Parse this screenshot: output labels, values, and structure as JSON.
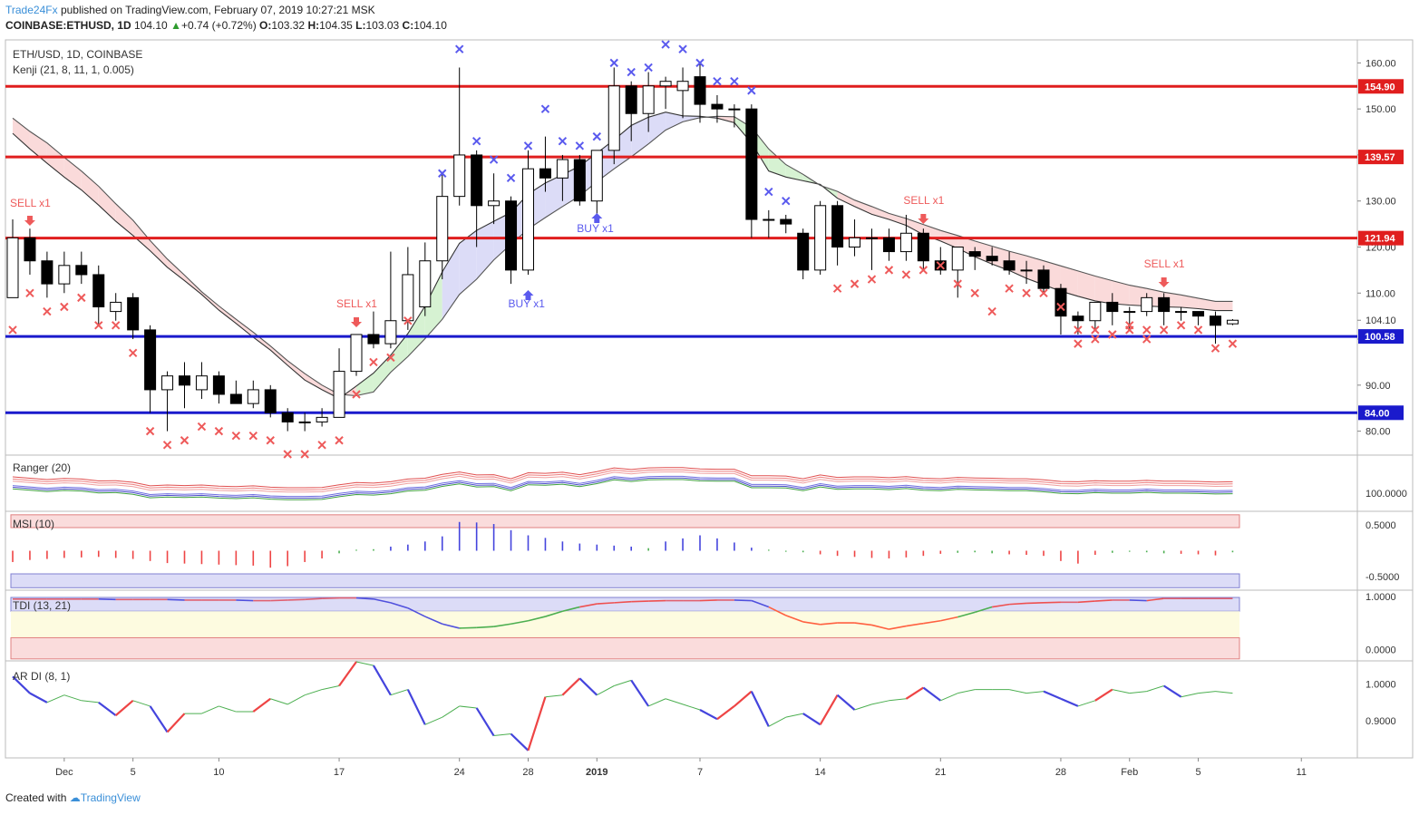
{
  "header": {
    "publisher": "Trade24Fx",
    "published_text": "published on TradingView.com, February 07, 2019 10:27:21 MSK",
    "symbol": "COINBASE:ETHUSD, 1D",
    "last": "104.10",
    "change": "+0.74 (+0.72%)",
    "open_label": "O:",
    "open": "103.32",
    "high_label": "H:",
    "high": "104.35",
    "low_label": "L:",
    "low": "103.03",
    "close_label": "C:",
    "close": "104.10"
  },
  "footer": {
    "created_with": "Created with",
    "brand": "TradingView"
  },
  "colors": {
    "resistance": "#e01e1e",
    "support": "#1a1acc",
    "bull_fill": "#ffffff",
    "bear_fill": "#000000",
    "buy_signal": "#5a5aee",
    "sell_signal": "#ee5a5a",
    "cloud_bear": "#fadada",
    "cloud_bull": "#dcdcf7",
    "cloud_green": "#d6f2d2",
    "ar_up": "#ee4444",
    "ar_down": "#4444dd",
    "ar_neutral": "#4caf50"
  },
  "chart_data": [
    {
      "type": "candlestick",
      "panel": "main",
      "legend": [
        "ETH/USD, 1D, COINBASE",
        "Kenji (21, 8, 11, 1, 0.005)"
      ],
      "ylim": [
        75,
        165
      ],
      "y_ticks": [
        80,
        90,
        100,
        110,
        120,
        130,
        140,
        150,
        160
      ],
      "x_tick_labels": [
        {
          "label": "Dec",
          "bar": 3
        },
        {
          "label": "5",
          "bar": 7
        },
        {
          "label": "10",
          "bar": 12
        },
        {
          "label": "17",
          "bar": 19
        },
        {
          "label": "24",
          "bar": 26
        },
        {
          "label": "28",
          "bar": 30
        },
        {
          "label": "2019",
          "bar": 34
        },
        {
          "label": "7",
          "bar": 40
        },
        {
          "label": "14",
          "bar": 47
        },
        {
          "label": "21",
          "bar": 54
        },
        {
          "label": "28",
          "bar": 61
        },
        {
          "label": "Feb",
          "bar": 65
        },
        {
          "label": "5",
          "bar": 69
        },
        {
          "label": "11",
          "bar": 75
        }
      ],
      "horizontal_levels": [
        {
          "value": 154.9,
          "label": "154.90",
          "kind": "resistance"
        },
        {
          "value": 139.57,
          "label": "139.57",
          "kind": "resistance"
        },
        {
          "value": 121.94,
          "label": "121.94",
          "kind": "resistance"
        },
        {
          "value": 100.58,
          "label": "100.58",
          "kind": "support"
        },
        {
          "value": 84.0,
          "label": "84.00",
          "kind": "support"
        }
      ],
      "last_price_label": "104.10",
      "candles_ohlc": [
        [
          109,
          126,
          109,
          122
        ],
        [
          122,
          124,
          114,
          117
        ],
        [
          117,
          119,
          109,
          112
        ],
        [
          112,
          119,
          110,
          116
        ],
        [
          116,
          119,
          112,
          114
        ],
        [
          114,
          116,
          103,
          107
        ],
        [
          106,
          110,
          104,
          108
        ],
        [
          109,
          110,
          100,
          102
        ],
        [
          102,
          103,
          84,
          89
        ],
        [
          89,
          93,
          80,
          92
        ],
        [
          92,
          95,
          85,
          90
        ],
        [
          89,
          95,
          87,
          92
        ],
        [
          92,
          93,
          86,
          88
        ],
        [
          88,
          91,
          86,
          86
        ],
        [
          86,
          91,
          85,
          89
        ],
        [
          89,
          90,
          83,
          84
        ],
        [
          84,
          85,
          80,
          82
        ],
        [
          82,
          84,
          80,
          82
        ],
        [
          82,
          85,
          81,
          83
        ],
        [
          83,
          98,
          83,
          93
        ],
        [
          93,
          100,
          92,
          101
        ],
        [
          101,
          106,
          98,
          99
        ],
        [
          99,
          119,
          98,
          104
        ],
        [
          104,
          120,
          102,
          114
        ],
        [
          107,
          121,
          105,
          117
        ],
        [
          117,
          136,
          113,
          131
        ],
        [
          131,
          159,
          129,
          140
        ],
        [
          140,
          141,
          120,
          129
        ],
        [
          129,
          136,
          125,
          130
        ],
        [
          130,
          131,
          112,
          115
        ],
        [
          115,
          141,
          114,
          137
        ],
        [
          137,
          144,
          132,
          135
        ],
        [
          135,
          140,
          130,
          139
        ],
        [
          139,
          140,
          129,
          130
        ],
        [
          130,
          141,
          127,
          141
        ],
        [
          141,
          159,
          138,
          155
        ],
        [
          155,
          156,
          143,
          149
        ],
        [
          149,
          158,
          145,
          155
        ],
        [
          155,
          157,
          150,
          156
        ],
        [
          154,
          159,
          148,
          156
        ],
        [
          157,
          160,
          147,
          151
        ],
        [
          151,
          153,
          147,
          150
        ],
        [
          150,
          151,
          146,
          150
        ],
        [
          150,
          151,
          122,
          126
        ],
        [
          126,
          128,
          122,
          126
        ],
        [
          126,
          127,
          123,
          125
        ],
        [
          123,
          124,
          113,
          115
        ],
        [
          115,
          130,
          114,
          129
        ],
        [
          129,
          130,
          116,
          120
        ],
        [
          120,
          126,
          118,
          122
        ],
        [
          122,
          124,
          115,
          122
        ],
        [
          122,
          124,
          117,
          119
        ],
        [
          119,
          127,
          117,
          123
        ],
        [
          123,
          124,
          115,
          117
        ],
        [
          117,
          120,
          114,
          115
        ],
        [
          115,
          120,
          109,
          120
        ],
        [
          119,
          120,
          115,
          118
        ],
        [
          118,
          120,
          116,
          117
        ],
        [
          117,
          119,
          114,
          115
        ],
        [
          115,
          117,
          112,
          115
        ],
        [
          115,
          116,
          110,
          111
        ],
        [
          111,
          112,
          101,
          105
        ],
        [
          105,
          106,
          101,
          104
        ],
        [
          104,
          108,
          102,
          108
        ],
        [
          108,
          110,
          103,
          106
        ],
        [
          106,
          107,
          102,
          106
        ],
        [
          106,
          110,
          105,
          109
        ],
        [
          109,
          110,
          103,
          106
        ],
        [
          106,
          107,
          104,
          106
        ],
        [
          106,
          106,
          103,
          105
        ],
        [
          105,
          106,
          99,
          103
        ],
        [
          103.32,
          104.35,
          103.03,
          104.1
        ]
      ],
      "kenji_band": {
        "fast": [
          144.7,
          141.3,
          138.2,
          135.2,
          132.4,
          129.1,
          125.6,
          122.5,
          119.2,
          115.6,
          112.7,
          109.7,
          106.3,
          103.4,
          100.4,
          97.6,
          94.3,
          91.1,
          89.0,
          87.1,
          89.8,
          92.6,
          96.5,
          101.2,
          107.2,
          114.6,
          120.8,
          123.6,
          125.6,
          127.5,
          131.5,
          133.9,
          135.7,
          137.6,
          140.4,
          143.3,
          146.4,
          148.2,
          149.3,
          148.5,
          148.4,
          148.0,
          147.0,
          142.6,
          136.5,
          135.2,
          134.4,
          133.6,
          130.6,
          128.8,
          127.1,
          126.0,
          124.7,
          122.7,
          121.3,
          119.7,
          117.9,
          116.3,
          114.9,
          113.2,
          111.8,
          110.4,
          109.3,
          108.3,
          107.7,
          107.4,
          107.2,
          107.0,
          106.9,
          106.6,
          106.2,
          106.2
        ],
        "slow": [
          148.0,
          145.1,
          142.6,
          139.5,
          136.5,
          133.2,
          129.4,
          125.8,
          121.4,
          117.4,
          113.9,
          110.3,
          107.2,
          104.3,
          101.5,
          98.5,
          95.3,
          92.5,
          90.0,
          88.0,
          87.7,
          88.5,
          92.8,
          96.2,
          100.1,
          104.3,
          109.7,
          113.0,
          117.2,
          120.6,
          123.9,
          126.4,
          128.8,
          131.1,
          134.2,
          137.0,
          139.6,
          142.4,
          145.4,
          147.2,
          148.1,
          148.4,
          148.3,
          146.0,
          141.3,
          137.9,
          135.8,
          133.4,
          132.1,
          130.2,
          128.8,
          127.3,
          126.2,
          124.9,
          123.6,
          122.5,
          121.3,
          120.2,
          119.1,
          118.1,
          117.0,
          115.9,
          114.8,
          113.7,
          112.7,
          111.7,
          111.0,
          110.2,
          109.6,
          108.9,
          108.2,
          108.2
        ]
      },
      "signal_marks": {
        "sell_x_below": [
          [
            0,
            102
          ],
          [
            1,
            110
          ],
          [
            2,
            106
          ],
          [
            3,
            107
          ],
          [
            4,
            109
          ],
          [
            5,
            103
          ],
          [
            6,
            103
          ],
          [
            7,
            97
          ],
          [
            8,
            80
          ],
          [
            9,
            77
          ],
          [
            10,
            78
          ],
          [
            11,
            81
          ],
          [
            12,
            80
          ],
          [
            13,
            79
          ],
          [
            14,
            79
          ],
          [
            15,
            78
          ],
          [
            16,
            75
          ],
          [
            17,
            75
          ],
          [
            18,
            77
          ],
          [
            19,
            78
          ],
          [
            20,
            88
          ],
          [
            21,
            95
          ],
          [
            22,
            96
          ],
          [
            23,
            104
          ],
          [
            62,
            102
          ],
          [
            63,
            102
          ],
          [
            64,
            101
          ],
          [
            65,
            103
          ],
          [
            66,
            102
          ],
          [
            67,
            102
          ],
          [
            68,
            103
          ],
          [
            69,
            102
          ],
          [
            70,
            98
          ],
          [
            71,
            99
          ],
          [
            48,
            111
          ],
          [
            49,
            112
          ],
          [
            50,
            113
          ],
          [
            51,
            115
          ],
          [
            52,
            114
          ],
          [
            53,
            115
          ],
          [
            54,
            116
          ],
          [
            55,
            112
          ],
          [
            56,
            110
          ],
          [
            57,
            106
          ],
          [
            58,
            111
          ],
          [
            59,
            110
          ],
          [
            60,
            110
          ],
          [
            61,
            107
          ],
          [
            62,
            99
          ],
          [
            63,
            100
          ],
          [
            64,
            101
          ],
          [
            65,
            102
          ],
          [
            66,
            100
          ]
        ],
        "buy_x_above": [
          [
            25,
            136
          ],
          [
            26,
            163
          ],
          [
            27,
            143
          ],
          [
            28,
            139
          ],
          [
            29,
            135
          ],
          [
            30,
            142
          ],
          [
            31,
            150
          ],
          [
            32,
            143
          ],
          [
            33,
            142
          ],
          [
            34,
            144
          ],
          [
            35,
            160
          ],
          [
            36,
            158
          ],
          [
            37,
            159
          ],
          [
            38,
            164
          ],
          [
            39,
            163
          ],
          [
            40,
            160
          ],
          [
            41,
            156
          ],
          [
            42,
            156
          ],
          [
            43,
            154
          ],
          [
            44,
            132
          ],
          [
            45,
            130
          ]
        ],
        "signal_labels": [
          {
            "bar": 1,
            "text": "SELL x1",
            "kind": "sell"
          },
          {
            "bar": 20,
            "text": "SELL x1",
            "kind": "sell"
          },
          {
            "bar": 30,
            "text": "BUY x1",
            "kind": "buy"
          },
          {
            "bar": 34,
            "text": "BUY x1",
            "kind": "buy"
          },
          {
            "bar": 53,
            "text": "SELL x1",
            "kind": "sell"
          },
          {
            "bar": 67,
            "text": "SELL x1",
            "kind": "sell"
          }
        ]
      }
    },
    {
      "type": "line",
      "panel": "ranger",
      "legend": "Ranger (20)",
      "y_tick": "100.0000",
      "series_count": 6
    },
    {
      "type": "bar",
      "panel": "msi",
      "legend": "MSI (10)",
      "y_ticks": [
        "0.5000",
        "-0.5000"
      ],
      "ylim": [
        -0.75,
        0.75
      ],
      "values": [
        -0.22,
        -0.18,
        -0.16,
        -0.14,
        -0.13,
        -0.12,
        -0.14,
        -0.16,
        -0.2,
        -0.24,
        -0.25,
        -0.26,
        -0.27,
        -0.28,
        -0.29,
        -0.33,
        -0.3,
        -0.22,
        -0.15,
        -0.05,
        0.02,
        0.03,
        0.08,
        0.12,
        0.18,
        0.28,
        0.56,
        0.55,
        0.52,
        0.4,
        0.3,
        0.25,
        0.18,
        0.14,
        0.12,
        0.1,
        0.08,
        0.05,
        0.18,
        0.24,
        0.3,
        0.24,
        0.16,
        0.06,
        0.02,
        -0.02,
        -0.03,
        -0.07,
        -0.1,
        -0.12,
        -0.14,
        -0.15,
        -0.13,
        -0.1,
        -0.06,
        -0.04,
        -0.03,
        -0.05,
        -0.07,
        -0.08,
        -0.1,
        -0.2,
        -0.25,
        -0.08,
        -0.04,
        -0.02,
        -0.03,
        -0.05,
        -0.06,
        -0.07,
        -0.09,
        -0.03
      ]
    },
    {
      "type": "line",
      "panel": "tdi",
      "legend": "TDI (13, 21)",
      "y_ticks": [
        "1.0000",
        "0.0000"
      ],
      "ylim": [
        -0.2,
        1.1
      ],
      "values": [
        0.95,
        0.95,
        0.95,
        0.95,
        0.95,
        0.95,
        0.94,
        0.94,
        0.94,
        0.94,
        0.93,
        0.93,
        0.93,
        0.93,
        0.92,
        0.92,
        0.93,
        0.94,
        0.96,
        0.97,
        0.97,
        0.95,
        0.88,
        0.78,
        0.62,
        0.48,
        0.4,
        0.41,
        0.43,
        0.48,
        0.54,
        0.62,
        0.72,
        0.8,
        0.86,
        0.88,
        0.9,
        0.91,
        0.92,
        0.92,
        0.92,
        0.93,
        0.93,
        0.92,
        0.8,
        0.64,
        0.52,
        0.47,
        0.5,
        0.5,
        0.46,
        0.38,
        0.44,
        0.49,
        0.54,
        0.61,
        0.7,
        0.8,
        0.85,
        0.87,
        0.88,
        0.89,
        0.89,
        0.91,
        0.93,
        0.93,
        0.92,
        0.96,
        0.96,
        0.96,
        0.96,
        0.96
      ]
    },
    {
      "type": "line",
      "panel": "ardi",
      "legend": "AR DI (8, 1)",
      "y_ticks": [
        "1.0000",
        "0.9000"
      ],
      "ylim": [
        0.8,
        1.06
      ],
      "values": [
        1.02,
        0.975,
        0.95,
        0.97,
        0.955,
        0.95,
        0.915,
        0.955,
        0.94,
        0.87,
        0.92,
        0.92,
        0.94,
        0.925,
        0.925,
        0.96,
        0.945,
        0.97,
        0.985,
        0.995,
        1.06,
        1.05,
        0.97,
        0.985,
        0.89,
        0.91,
        0.94,
        0.935,
        0.86,
        0.865,
        0.82,
        0.965,
        0.97,
        1.015,
        0.97,
        0.995,
        1.01,
        0.94,
        0.96,
        0.945,
        0.93,
        0.905,
        0.94,
        0.98,
        0.885,
        0.91,
        0.92,
        0.89,
        0.97,
        0.93,
        0.945,
        0.955,
        0.96,
        0.99,
        0.955,
        0.975,
        0.985,
        0.985,
        0.985,
        0.975,
        0.98,
        0.96,
        0.94,
        0.955,
        0.985,
        0.975,
        0.98,
        0.995,
        0.965,
        0.975,
        0.98,
        0.975
      ]
    }
  ]
}
